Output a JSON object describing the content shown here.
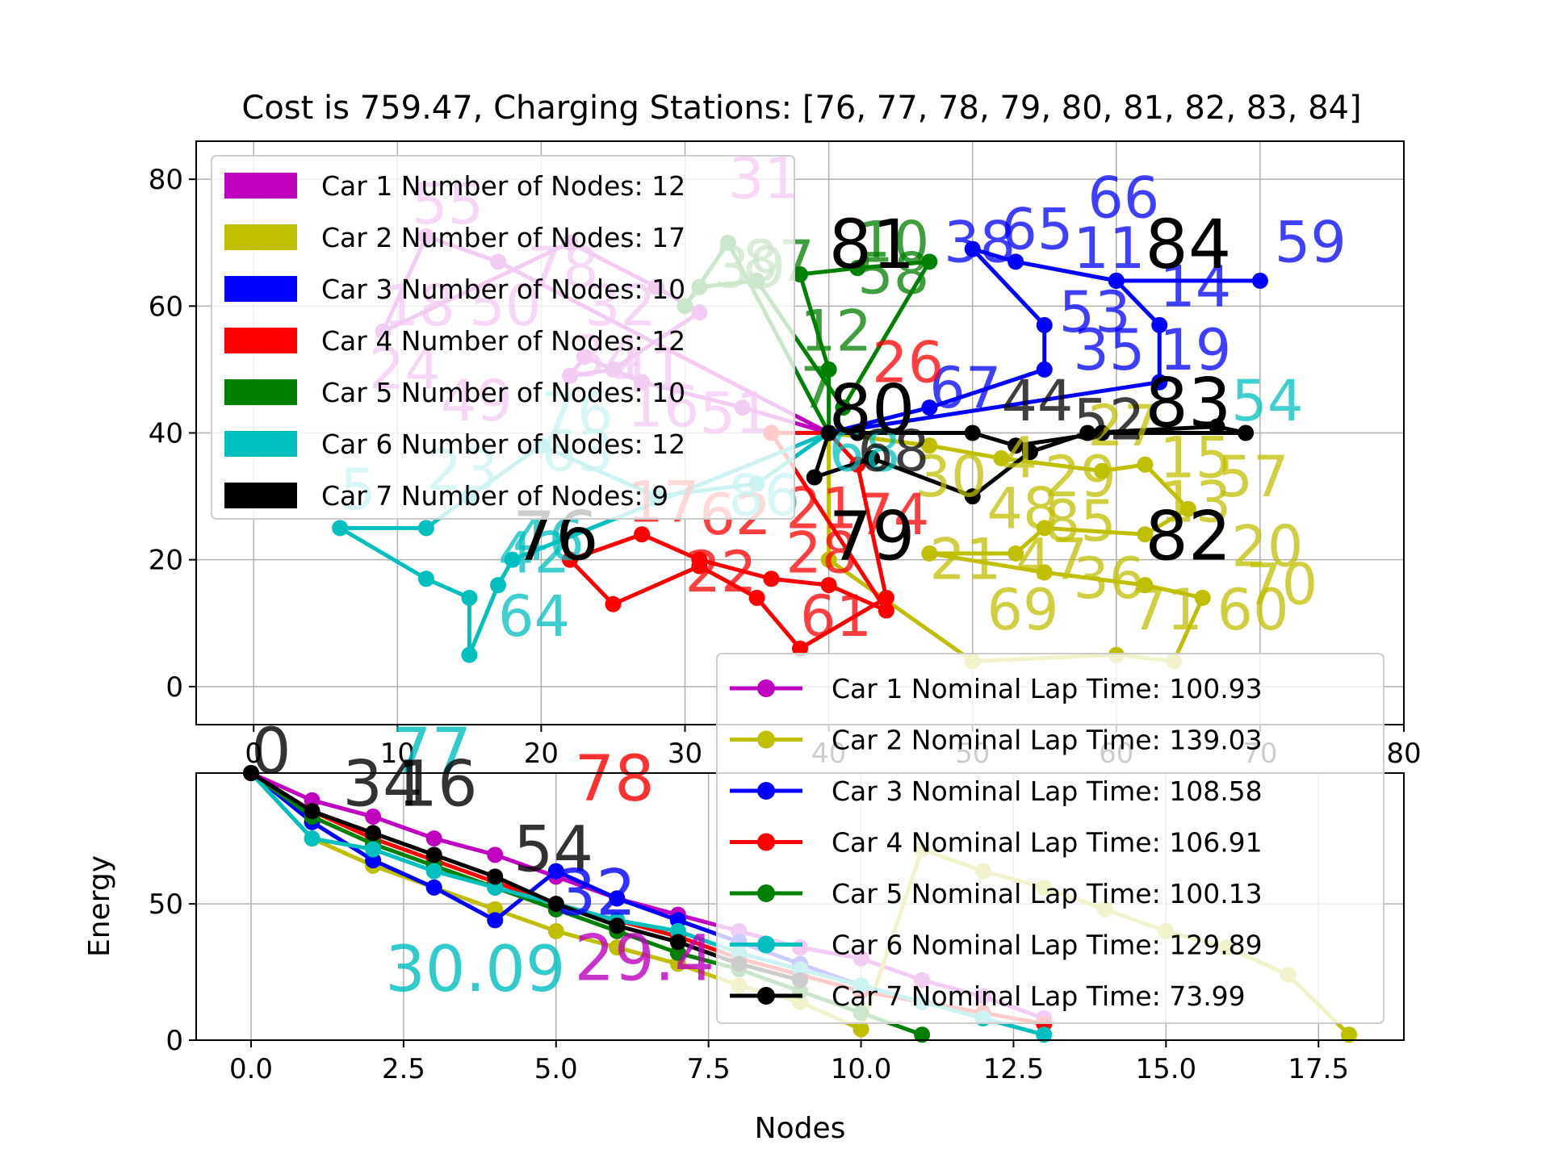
{
  "title": "Cost is 759.47, Charging Stations: [76, 77, 78, 79, 80, 81, 82, 83, 84]",
  "colors": {
    "car1": "#bf00bf",
    "car2": "#bfbf00",
    "car3": "#0000ff",
    "car4": "#ff0000",
    "car5": "#008000",
    "car6": "#00bfbf",
    "car7": "#000000",
    "grid": "#b0b0b0"
  },
  "top_legend": [
    {
      "label": "Car 1 Number of Nodes: 12",
      "color": "#bf00bf"
    },
    {
      "label": "Car 2 Number of Nodes: 17",
      "color": "#bfbf00"
    },
    {
      "label": "Car 3 Number of Nodes: 10",
      "color": "#0000ff"
    },
    {
      "label": "Car 4 Number of Nodes: 12",
      "color": "#ff0000"
    },
    {
      "label": "Car 5 Number of Nodes: 10",
      "color": "#008000"
    },
    {
      "label": "Car 6 Number of Nodes: 12",
      "color": "#00bfbf"
    },
    {
      "label": "Car 7 Number of Nodes: 9",
      "color": "#000000"
    }
  ],
  "bottom_legend": [
    {
      "label": "Car 1 Nominal Lap Time: 100.93",
      "color": "#bf00bf"
    },
    {
      "label": "Car 2 Nominal Lap Time: 139.03",
      "color": "#bfbf00"
    },
    {
      "label": "Car 3 Nominal Lap Time: 108.58",
      "color": "#0000ff"
    },
    {
      "label": "Car 4 Nominal Lap Time: 106.91",
      "color": "#ff0000"
    },
    {
      "label": "Car 5 Nominal Lap Time: 100.13",
      "color": "#008000"
    },
    {
      "label": "Car 6 Nominal Lap Time: 129.89",
      "color": "#00bfbf"
    },
    {
      "label": "Car 7 Nominal Lap Time: 73.99",
      "color": "#000000"
    }
  ],
  "chart_data": [
    {
      "type": "line",
      "title": "Cost is 759.47, Charging Stations: [76, 77, 78, 79, 80, 81, 82, 83, 84]",
      "xlabel": "",
      "ylabel": "",
      "xlim": [
        -4,
        80
      ],
      "ylim": [
        -6,
        86
      ],
      "xticks": [
        0,
        10,
        20,
        30,
        40,
        50,
        60,
        70,
        80
      ],
      "yticks": [
        0,
        20,
        40,
        60,
        80
      ],
      "grid": true,
      "legend_position": "top-left",
      "station_labels": [
        {
          "text": "76",
          "x": 18,
          "y": 20
        },
        {
          "text": "79",
          "x": 40,
          "y": 20
        },
        {
          "text": "80",
          "x": 40,
          "y": 40
        },
        {
          "text": "81",
          "x": 40,
          "y": 66
        },
        {
          "text": "82",
          "x": 62,
          "y": 20
        },
        {
          "text": "83",
          "x": 62,
          "y": 41
        },
        {
          "text": "84",
          "x": 62,
          "y": 66
        }
      ],
      "series": [
        {
          "name": "Car 1 Number of Nodes: 12",
          "color": "#bf00bf",
          "x": [
            40,
            34,
            27,
            23,
            22,
            25,
            31,
            28,
            22,
            9,
            12,
            17,
            40
          ],
          "y": [
            40,
            44,
            48,
            52,
            49,
            50,
            59,
            63,
            70,
            56,
            71,
            67,
            40
          ],
          "node_labels": [
            {
              "text": "55",
              "x": 11,
              "y": 73
            },
            {
              "text": "18",
              "x": 9,
              "y": 57
            },
            {
              "text": "50",
              "x": 15,
              "y": 57
            },
            {
              "text": "34",
              "x": 22,
              "y": 49
            },
            {
              "text": "32",
              "x": 23,
              "y": 57
            },
            {
              "text": "41",
              "x": 25,
              "y": 47
            },
            {
              "text": "31",
              "x": 33,
              "y": 77
            },
            {
              "text": "78",
              "x": 19,
              "y": 63
            },
            {
              "text": "16",
              "x": 26,
              "y": 41
            },
            {
              "text": "51",
              "x": 31,
              "y": 40
            },
            {
              "text": "24",
              "x": 8,
              "y": 47
            },
            {
              "text": "49",
              "x": 13,
              "y": 42
            }
          ]
        },
        {
          "name": "Car 2 Number of Nodes: 17",
          "color": "#bfbf00",
          "x": [
            40,
            47,
            52,
            59,
            62,
            65,
            62,
            55,
            53,
            47,
            55,
            62,
            66,
            64,
            60,
            50,
            40,
            40
          ],
          "y": [
            40,
            38,
            36,
            34,
            35,
            28,
            24,
            25,
            21,
            21,
            18,
            16,
            14,
            4,
            5,
            4,
            20,
            40
          ],
          "node_labels": [
            {
              "text": "4",
              "x": 52,
              "y": 33
            },
            {
              "text": "29",
              "x": 55,
              "y": 30
            },
            {
              "text": "15",
              "x": 63,
              "y": 33
            },
            {
              "text": "57",
              "x": 67,
              "y": 30
            },
            {
              "text": "13",
              "x": 63,
              "y": 26
            },
            {
              "text": "48",
              "x": 51,
              "y": 25
            },
            {
              "text": "85",
              "x": 55,
              "y": 23
            },
            {
              "text": "36",
              "x": 57,
              "y": 14
            },
            {
              "text": "71",
              "x": 61,
              "y": 9
            },
            {
              "text": "60",
              "x": 67,
              "y": 9
            },
            {
              "text": "69",
              "x": 51,
              "y": 9
            },
            {
              "text": "20",
              "x": 68,
              "y": 19
            },
            {
              "text": "70",
              "x": 69,
              "y": 13
            },
            {
              "text": "21",
              "x": 47,
              "y": 17
            },
            {
              "text": "47",
              "x": 53,
              "y": 17
            },
            {
              "text": "30",
              "x": 46,
              "y": 30
            },
            {
              "text": "27",
              "x": 58,
              "y": 38
            }
          ]
        },
        {
          "name": "Car 3 Number of Nodes: 10",
          "color": "#0000ff",
          "x": [
            40,
            47,
            55,
            55,
            50,
            53,
            60,
            70,
            60,
            63,
            63,
            63,
            40
          ],
          "y": [
            40,
            44,
            50,
            57,
            69,
            67,
            64,
            64,
            64,
            57,
            48,
            48,
            40
          ],
          "node_labels": [
            {
              "text": "38",
              "x": 48,
              "y": 67
            },
            {
              "text": "65",
              "x": 52,
              "y": 69
            },
            {
              "text": "11",
              "x": 57,
              "y": 66
            },
            {
              "text": "66",
              "x": 58,
              "y": 74
            },
            {
              "text": "53",
              "x": 56,
              "y": 56
            },
            {
              "text": "14",
              "x": 63,
              "y": 60
            },
            {
              "text": "59",
              "x": 71,
              "y": 67
            },
            {
              "text": "35",
              "x": 57,
              "y": 50
            },
            {
              "text": "19",
              "x": 63,
              "y": 50
            },
            {
              "text": "67",
              "x": 47,
              "y": 44
            }
          ]
        },
        {
          "name": "Car 4 Number of Nodes: 12",
          "color": "#ff0000",
          "x": [
            40,
            42,
            44,
            38,
            35,
            31,
            25,
            22,
            27,
            31,
            36,
            40,
            44,
            36,
            40
          ],
          "y": [
            40,
            35,
            14,
            6,
            14,
            19,
            13,
            20,
            24,
            20,
            17,
            16,
            12,
            40,
            40
          ],
          "node_labels": [
            {
              "text": "22",
              "x": 30,
              "y": 15
            },
            {
              "text": "28",
              "x": 37,
              "y": 18
            },
            {
              "text": "61",
              "x": 38,
              "y": 8
            },
            {
              "text": "62",
              "x": 31,
              "y": 24
            },
            {
              "text": "74",
              "x": 42,
              "y": 24
            },
            {
              "text": "17",
              "x": 26,
              "y": 26
            },
            {
              "text": "26",
              "x": 43,
              "y": 48
            },
            {
              "text": "21",
              "x": 37,
              "y": 25
            }
          ]
        },
        {
          "name": "Car 5 Number of Nodes: 10",
          "color": "#008000",
          "x": [
            40,
            40,
            38,
            42,
            47,
            41,
            35,
            31,
            30,
            33,
            40
          ],
          "y": [
            40,
            50,
            65,
            66,
            67,
            44,
            64,
            63,
            60,
            70,
            40
          ],
          "node_labels": [
            {
              "text": "10",
              "x": 42,
              "y": 67
            },
            {
              "text": "58",
              "x": 42,
              "y": 62
            },
            {
              "text": "12",
              "x": 38,
              "y": 53
            },
            {
              "text": "39",
              "x": 32,
              "y": 63
            },
            {
              "text": "87",
              "x": 34,
              "y": 64
            },
            {
              "text": "7",
              "x": 38,
              "y": 44
            }
          ]
        },
        {
          "name": "Car 6 Number of Nodes: 12",
          "color": "#00bfbf",
          "x": [
            40,
            35,
            28,
            20,
            15,
            12,
            6,
            12,
            15,
            15,
            17,
            18,
            40
          ],
          "y": [
            40,
            32,
            30,
            38,
            30,
            25,
            25,
            17,
            14,
            5,
            16,
            20,
            40
          ],
          "node_labels": [
            {
              "text": "64",
              "x": 17,
              "y": 8
            },
            {
              "text": "42",
              "x": 17,
              "y": 18
            },
            {
              "text": "46",
              "x": 18,
              "y": 20
            },
            {
              "text": "23",
              "x": 12,
              "y": 31
            },
            {
              "text": "63",
              "x": 20,
              "y": 34
            },
            {
              "text": "86",
              "x": 33,
              "y": 27
            },
            {
              "text": "5",
              "x": 6,
              "y": 28
            },
            {
              "text": "68",
              "x": 40,
              "y": 34
            },
            {
              "text": "54",
              "x": 68,
              "y": 42
            },
            {
              "text": "76",
              "x": 20,
              "y": 40
            }
          ]
        },
        {
          "name": "Car 7 Number of Nodes: 9",
          "color": "#000000",
          "x": [
            40,
            39,
            43,
            50,
            54,
            58,
            67,
            69,
            59,
            53,
            50,
            42,
            40
          ],
          "y": [
            40,
            33,
            36,
            30,
            37,
            40,
            41,
            40,
            40,
            38,
            40,
            40,
            40
          ],
          "node_labels": [
            {
              "text": "68",
              "x": 42,
              "y": 34
            },
            {
              "text": "44",
              "x": 52,
              "y": 42
            },
            {
              "text": "52",
              "x": 57,
              "y": 39
            }
          ]
        }
      ]
    },
    {
      "type": "line",
      "title": "",
      "xlabel": "Nodes",
      "ylabel": "Energy",
      "xlim": [
        -0.9,
        18.9
      ],
      "ylim": [
        0,
        98
      ],
      "xticks": [
        0.0,
        2.5,
        5.0,
        7.5,
        10.0,
        12.5,
        15.0,
        17.5
      ],
      "xtick_labels": [
        "0.0",
        "2.5",
        "5.0",
        "7.5",
        "10.0",
        "12.5",
        "15.0",
        "17.5"
      ],
      "yticks": [
        0,
        50
      ],
      "grid": true,
      "legend_position": "right",
      "series": [
        {
          "name": "Car 1 Nominal Lap Time: 100.93",
          "color": "#bf00bf",
          "x": [
            0,
            1,
            2,
            3,
            4,
            5,
            6,
            7,
            8,
            9,
            10,
            11,
            12,
            13
          ],
          "y": [
            98,
            88,
            82,
            74,
            68,
            60,
            52,
            46,
            40,
            34,
            30,
            22,
            16,
            8
          ]
        },
        {
          "name": "Car 2 Nominal Lap Time: 139.03",
          "color": "#bfbf00",
          "x": [
            0,
            1,
            2,
            3,
            4,
            5,
            6,
            7,
            8,
            9,
            10,
            11,
            12,
            13,
            14,
            15,
            16,
            17,
            18
          ],
          "y": [
            98,
            74,
            64,
            56,
            48,
            40,
            34,
            28,
            20,
            14,
            4,
            70,
            62,
            56,
            48,
            40,
            34,
            24,
            2
          ]
        },
        {
          "name": "Car 3 Nominal Lap Time: 108.58",
          "color": "#0000ff",
          "x": [
            0,
            1,
            2,
            3,
            4,
            5,
            6,
            7,
            8,
            9,
            10,
            11
          ],
          "y": [
            98,
            80,
            66,
            56,
            44,
            62,
            52,
            44,
            36,
            28,
            20,
            14
          ]
        },
        {
          "name": "Car 4 Nominal Lap Time: 106.91",
          "color": "#ff0000",
          "x": [
            0,
            1,
            2,
            3,
            4,
            5,
            6,
            7,
            8,
            9,
            10,
            11,
            12,
            13
          ],
          "y": [
            98,
            84,
            74,
            66,
            58,
            50,
            44,
            38,
            30,
            24,
            18,
            14,
            10,
            6
          ]
        },
        {
          "name": "Car 5 Nominal Lap Time: 100.13",
          "color": "#008000",
          "x": [
            0,
            1,
            2,
            3,
            4,
            5,
            6,
            7,
            8,
            9,
            10,
            11
          ],
          "y": [
            98,
            82,
            72,
            64,
            56,
            48,
            40,
            32,
            26,
            18,
            10,
            2
          ]
        },
        {
          "name": "Car 6 Nominal Lap Time: 129.89",
          "color": "#00bfbf",
          "x": [
            0,
            1,
            2,
            3,
            4,
            5,
            6,
            7,
            8,
            9,
            10,
            11,
            12,
            13
          ],
          "y": [
            98,
            74,
            70,
            62,
            56,
            50,
            44,
            40,
            32,
            26,
            20,
            14,
            8,
            2
          ]
        },
        {
          "name": "Car 7 Nominal Lap Time: 73.99",
          "color": "#000000",
          "x": [
            0,
            1,
            2,
            3,
            4,
            5,
            6,
            7,
            8,
            9
          ],
          "y": [
            98,
            84,
            76,
            68,
            60,
            50,
            42,
            36,
            28,
            22
          ]
        }
      ],
      "big_labels": [
        {
          "text": "0",
          "x": 0.0,
          "y": 98,
          "color": "#000000"
        },
        {
          "text": "77",
          "x": 2.3,
          "y": 98,
          "color": "#00bfbf"
        },
        {
          "text": "34",
          "x": 1.5,
          "y": 86,
          "color": "#000000"
        },
        {
          "text": "16",
          "x": 2.4,
          "y": 86,
          "color": "#000000"
        },
        {
          "text": "54",
          "x": 4.3,
          "y": 62,
          "color": "#000000"
        },
        {
          "text": "32",
          "x": 5.0,
          "y": 46,
          "color": "#0000ff"
        },
        {
          "text": "30.09",
          "x": 2.2,
          "y": 18,
          "color": "#00bfbf"
        },
        {
          "text": "29.4",
          "x": 5.3,
          "y": 22,
          "color": "#bf00bf"
        },
        {
          "text": "78",
          "x": 5.3,
          "y": 88,
          "color": "#ff0000"
        }
      ]
    }
  ]
}
